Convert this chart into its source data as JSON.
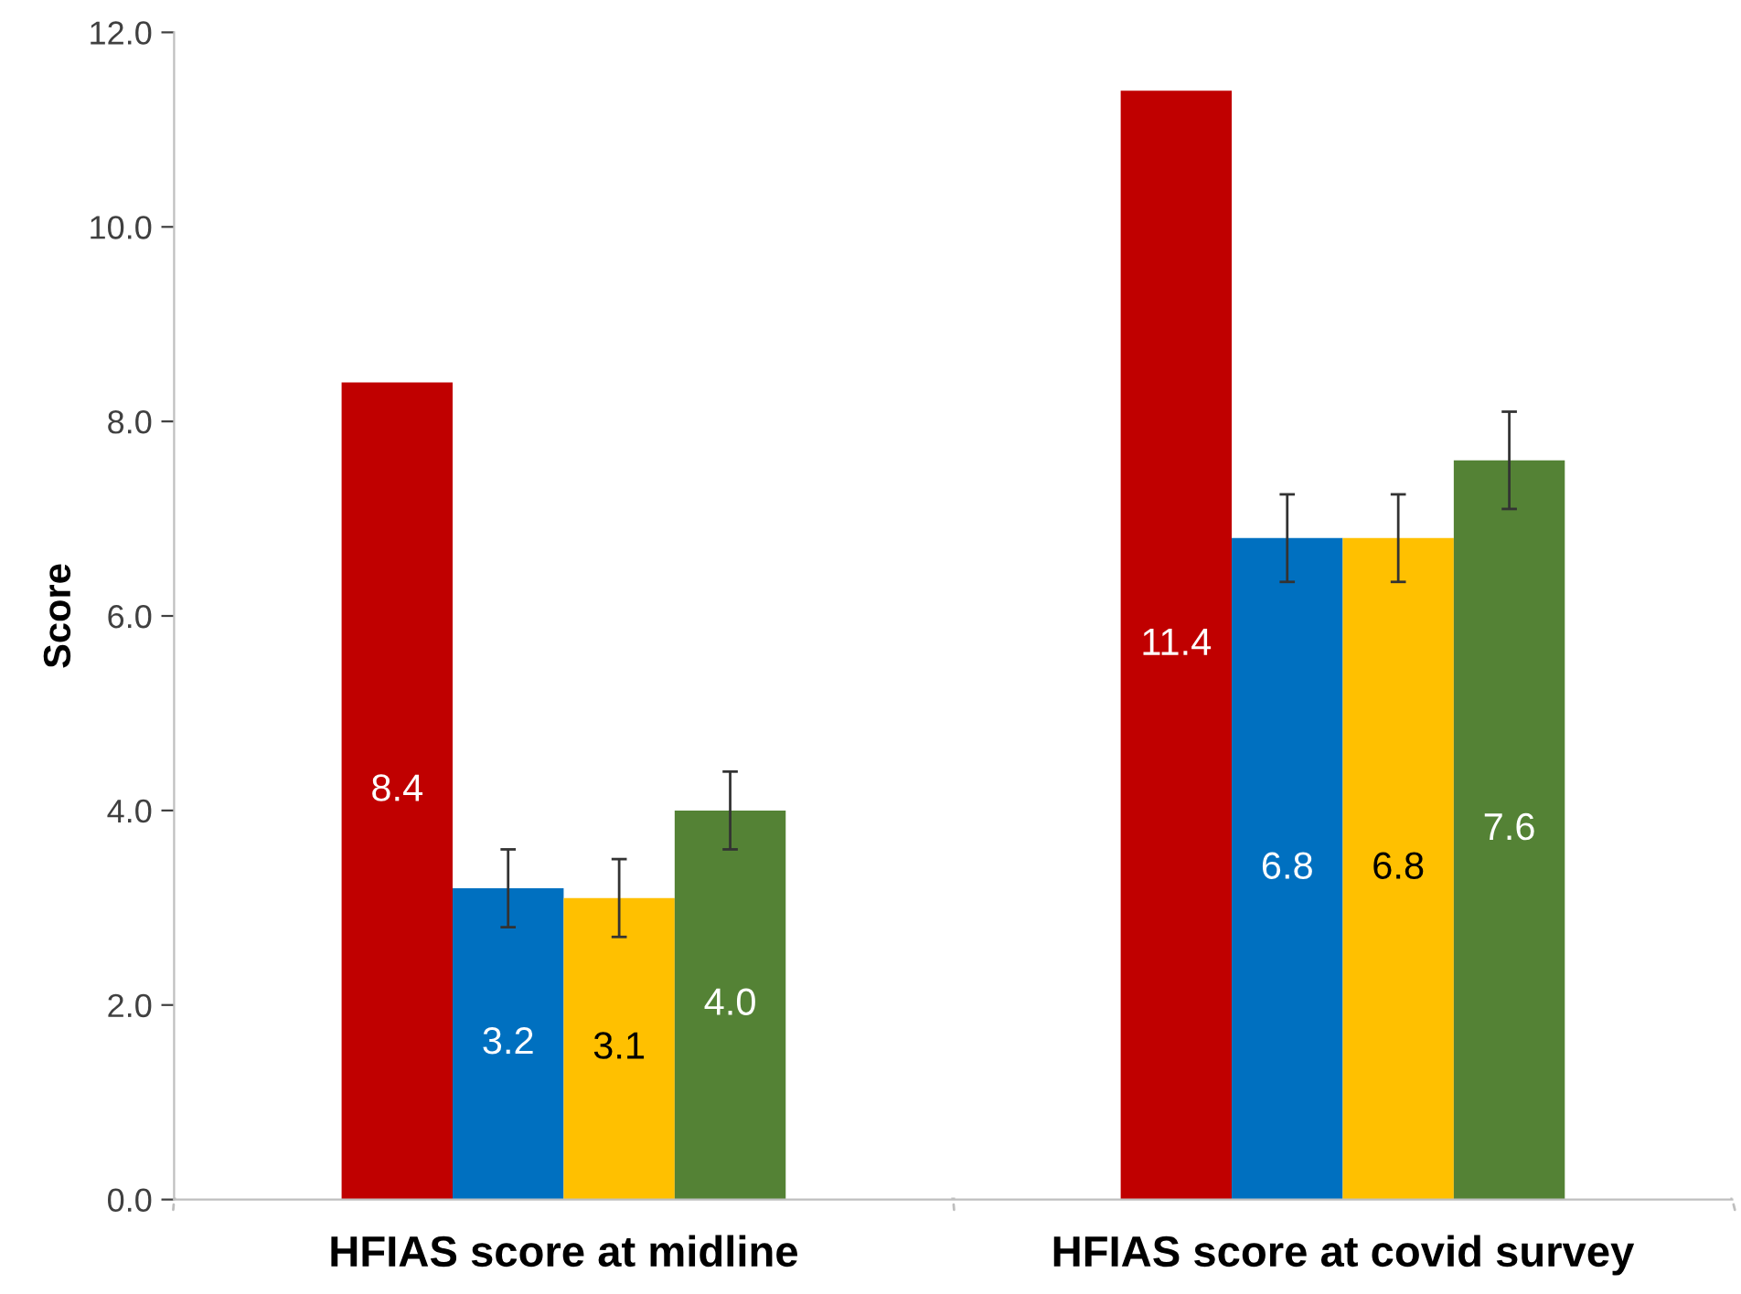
{
  "chart_data": {
    "type": "bar",
    "ylabel": "Score",
    "categories": [
      "HFIAS score at midline",
      "HFIAS score at covid survey"
    ],
    "series": [
      {
        "color": "#c00000",
        "values": [
          8.4,
          11.4
        ],
        "errors": [
          null,
          null
        ],
        "value_labels": [
          "8.4",
          "11.4"
        ]
      },
      {
        "color": "#0070c0",
        "values": [
          3.2,
          6.8
        ],
        "errors": [
          0.4,
          0.45
        ],
        "value_labels": [
          "3.2",
          "6.8"
        ]
      },
      {
        "color": "#ffc000",
        "values": [
          3.1,
          6.8
        ],
        "errors": [
          0.4,
          0.45
        ],
        "value_labels": [
          "3.1",
          "6.8"
        ]
      },
      {
        "color": "#548235",
        "values": [
          4.0,
          7.6
        ],
        "errors": [
          0.4,
          0.5
        ],
        "value_labels": [
          "4.0",
          "7.6"
        ]
      }
    ],
    "ylim": [
      0,
      12
    ],
    "yticks": [
      {
        "value": 0,
        "label": "0.0"
      },
      {
        "value": 2,
        "label": "2.0"
      },
      {
        "value": 4,
        "label": "4.0"
      },
      {
        "value": 6,
        "label": "6.0"
      },
      {
        "value": 8,
        "label": "8.0"
      },
      {
        "value": 10,
        "label": "10.0"
      },
      {
        "value": 12,
        "label": "12.0"
      }
    ],
    "grid": false,
    "legend": false
  }
}
